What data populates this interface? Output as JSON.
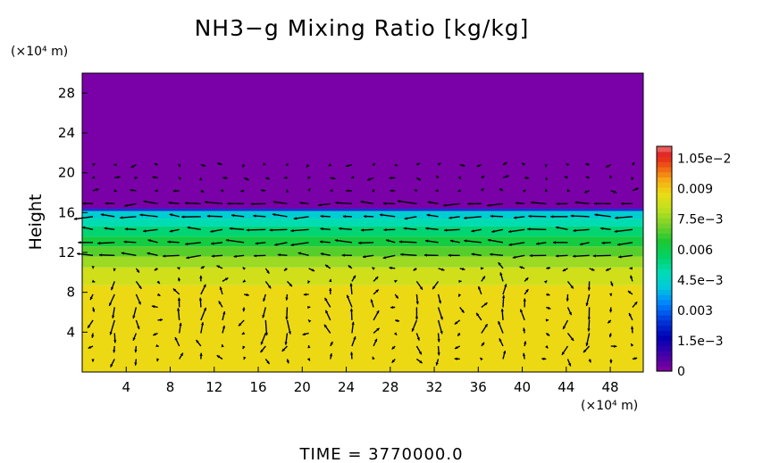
{
  "chart_data": {
    "type": "heatmap",
    "title": "NH3−g Mixing Ratio [kg/kg]",
    "ylabel": "Height",
    "y_unit": "(×10⁴ m)",
    "x_unit": "(×10⁴ m)",
    "x_ticks": [
      "4",
      "8",
      "12",
      "16",
      "20",
      "24",
      "28",
      "32",
      "36",
      "40",
      "44",
      "48"
    ],
    "y_ticks": [
      "4",
      "8",
      "12",
      "16",
      "20",
      "24",
      "28"
    ],
    "xlim": [
      0,
      51
    ],
    "ylim": [
      0,
      30
    ],
    "colorbar": {
      "ticks": [
        {
          "value": 0,
          "label": "0"
        },
        {
          "value": 0.0015,
          "label": "1.5e−3"
        },
        {
          "value": 0.003,
          "label": "0.003"
        },
        {
          "value": 0.0045,
          "label": "4.5e−3"
        },
        {
          "value": 0.006,
          "label": "0.006"
        },
        {
          "value": 0.0075,
          "label": "7.5e−3"
        },
        {
          "value": 0.009,
          "label": "0.009"
        },
        {
          "value": 0.0105,
          "label": "1.05e−2"
        }
      ],
      "range": [
        0,
        0.0111
      ]
    },
    "layers": [
      {
        "y_from": 0,
        "y_to": 8.7,
        "value": 0.0087
      },
      {
        "y_from": 8.7,
        "y_to": 10.5,
        "value": 0.0082
      },
      {
        "y_from": 10.5,
        "y_to": 11.6,
        "value": 0.0075
      },
      {
        "y_from": 11.6,
        "y_to": 12.6,
        "value": 0.0068
      },
      {
        "y_from": 12.6,
        "y_to": 13.6,
        "value": 0.0061
      },
      {
        "y_from": 13.6,
        "y_to": 14.6,
        "value": 0.0054
      },
      {
        "y_from": 14.6,
        "y_to": 15.4,
        "value": 0.0048
      },
      {
        "y_from": 15.4,
        "y_to": 16.3,
        "value": 0.0042
      },
      {
        "y_from": 16.3,
        "y_to": 30,
        "value": 0.0
      }
    ],
    "vector_field": true,
    "time_label": "TIME  =  3770000.0"
  }
}
